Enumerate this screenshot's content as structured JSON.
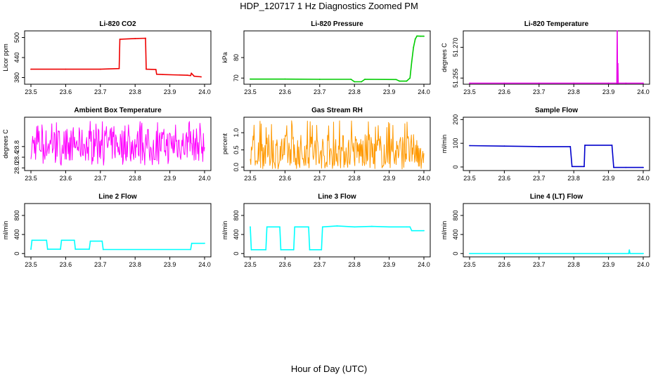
{
  "figure": {
    "title": "HDP_120717  1 Hz Diagnostics Zoomed PM",
    "xlabel": "Hour of Day (UTC)"
  },
  "chart_data": [
    {
      "type": "line",
      "title": "Li-820 CO2",
      "ylabel": "Licor ppm",
      "color": "#ee0000",
      "xlim": [
        23.5,
        24.0
      ],
      "ylim": [
        360,
        520
      ],
      "yticks": [
        380,
        440,
        500
      ],
      "ytick_labels": [
        "380",
        "440",
        "500"
      ],
      "xticks": [
        23.5,
        23.6,
        23.7,
        23.8,
        23.9,
        24.0
      ],
      "x": [
        23.5,
        23.6,
        23.7,
        23.754,
        23.756,
        23.8,
        23.83,
        23.832,
        23.86,
        23.862,
        23.88,
        23.95,
        23.96,
        23.962,
        23.97,
        23.99
      ],
      "y": [
        405,
        405,
        405,
        407,
        495,
        497,
        498,
        405,
        404,
        390,
        389,
        387,
        386,
        393,
        384,
        382
      ]
    },
    {
      "type": "line",
      "title": "Li-820 Pressure",
      "ylabel": "kPa",
      "color": "#00cc00",
      "xlim": [
        23.5,
        24.0
      ],
      "ylim": [
        67,
        93
      ],
      "yticks": [
        70,
        80
      ],
      "ytick_labels": [
        "70",
        "80"
      ],
      "xticks": [
        23.5,
        23.6,
        23.7,
        23.8,
        23.9,
        24.0
      ],
      "x": [
        23.5,
        23.6,
        23.7,
        23.79,
        23.8,
        23.82,
        23.83,
        23.92,
        23.93,
        23.95,
        23.96,
        23.965,
        23.97,
        23.975,
        23.98,
        23.99,
        24.0
      ],
      "y": [
        69.5,
        69.5,
        69.4,
        69.4,
        68.2,
        68.2,
        69.4,
        69.3,
        68.5,
        68.5,
        70,
        78,
        85,
        89,
        90.5,
        90.4,
        90.4
      ]
    },
    {
      "type": "line",
      "title": "Li-820 Temperature",
      "ylabel": "degrees C",
      "color": "#e800e8",
      "xlim": [
        23.5,
        24.0
      ],
      "ylim": [
        51.252,
        51.278
      ],
      "yticks": [
        51.255,
        51.27
      ],
      "ytick_labels": [
        "51.255",
        "51.270"
      ],
      "xticks": [
        23.5,
        23.6,
        23.7,
        23.8,
        23.9,
        24.0
      ],
      "x": [
        23.5,
        23.6,
        23.7,
        23.8,
        23.9,
        23.924,
        23.925,
        23.926,
        23.927,
        23.928,
        23.95,
        24.0
      ],
      "y": [
        51.2525,
        51.2525,
        51.2525,
        51.2525,
        51.2525,
        51.2525,
        51.278,
        51.2525,
        51.262,
        51.2525,
        51.2525,
        51.2525
      ]
    },
    {
      "type": "line",
      "title": "Ambient Box Temperature",
      "ylabel": "degrees C",
      "color": "#ff00ff",
      "xlim": [
        23.5,
        24.0
      ],
      "ylim": [
        27.9,
        29.9
      ],
      "yticks": [
        28.0,
        28.4,
        28.8
      ],
      "ytick_labels": [
        "28.0",
        "28.4",
        "28.8"
      ],
      "xticks": [
        23.5,
        23.6,
        23.7,
        23.8,
        23.9,
        24.0
      ],
      "noise": {
        "base": 28.87,
        "low": 28.1,
        "high": 29.75,
        "points": 300
      },
      "x": [
        23.5,
        24.0
      ],
      "y": [
        28.1,
        29.75
      ]
    },
    {
      "type": "line",
      "title": "Gas Stream RH",
      "ylabel": "percent",
      "color": "#ff9900",
      "xlim": [
        23.5,
        24.0
      ],
      "ylim": [
        -0.1,
        1.45
      ],
      "yticks": [
        0.0,
        0.5,
        1.0
      ],
      "ytick_labels": [
        "0.0",
        "0.5",
        "1.0"
      ],
      "xticks": [
        23.5,
        23.6,
        23.7,
        23.8,
        23.9,
        24.0
      ],
      "noise": {
        "base": 0.45,
        "low": 0.0,
        "high": 1.35,
        "points": 320
      },
      "x": [
        23.5,
        24.0
      ],
      "y": [
        0.0,
        1.35
      ]
    },
    {
      "type": "line",
      "title": "Sample Flow",
      "ylabel": "ml/min",
      "color": "#0000cc",
      "xlim": [
        23.5,
        24.0
      ],
      "ylim": [
        -15,
        210
      ],
      "yticks": [
        0,
        100,
        200
      ],
      "ytick_labels": [
        "0",
        "100",
        "200"
      ],
      "xticks": [
        23.5,
        23.6,
        23.7,
        23.8,
        23.9,
        24.0
      ],
      "x": [
        23.5,
        23.6,
        23.7,
        23.79,
        23.795,
        23.83,
        23.832,
        23.91,
        23.915,
        23.95,
        24.0
      ],
      "y": [
        90,
        88,
        86,
        86,
        2,
        2,
        92,
        92,
        -2,
        -2,
        -2
      ]
    },
    {
      "type": "line",
      "title": "Line 2 Flow",
      "ylabel": "ml/min",
      "color": "#00ffff",
      "xlim": [
        23.5,
        24.0
      ],
      "ylim": [
        -70,
        1050
      ],
      "yticks": [
        0,
        400,
        800
      ],
      "ytick_labels": [
        "0",
        "400",
        "800"
      ],
      "xticks": [
        23.5,
        23.6,
        23.7,
        23.8,
        23.9,
        24.0
      ],
      "x": [
        23.5,
        23.503,
        23.545,
        23.548,
        23.585,
        23.588,
        23.625,
        23.628,
        23.668,
        23.671,
        23.705,
        23.708,
        23.96,
        23.963,
        24.0
      ],
      "y": [
        90,
        280,
        280,
        90,
        90,
        280,
        280,
        90,
        90,
        260,
        260,
        85,
        85,
        215,
        215
      ]
    },
    {
      "type": "line",
      "title": "Line 3 Flow",
      "ylabel": "ml/min",
      "color": "#00ffff",
      "xlim": [
        23.5,
        24.0
      ],
      "ylim": [
        -70,
        1050
      ],
      "yticks": [
        0,
        400,
        800
      ],
      "ytick_labels": [
        "0",
        "400",
        "800"
      ],
      "xticks": [
        23.5,
        23.6,
        23.7,
        23.8,
        23.9,
        24.0
      ],
      "x": [
        23.5,
        23.503,
        23.545,
        23.548,
        23.585,
        23.588,
        23.625,
        23.628,
        23.668,
        23.671,
        23.705,
        23.708,
        23.75,
        23.8,
        23.85,
        23.9,
        23.95,
        23.96,
        23.965,
        24.0
      ],
      "y": [
        560,
        80,
        80,
        560,
        560,
        80,
        80,
        560,
        560,
        80,
        80,
        560,
        580,
        560,
        570,
        560,
        560,
        560,
        480,
        480
      ]
    },
    {
      "type": "line",
      "title": "Line 4 (LT) Flow",
      "ylabel": "ml/min",
      "color": "#00ffff",
      "xlim": [
        23.5,
        24.0
      ],
      "ylim": [
        -70,
        1050
      ],
      "yticks": [
        0,
        400,
        800
      ],
      "ytick_labels": [
        "0",
        "400",
        "800"
      ],
      "xticks": [
        23.5,
        23.6,
        23.7,
        23.8,
        23.9,
        24.0
      ],
      "x": [
        23.5,
        23.6,
        23.7,
        23.8,
        23.9,
        23.958,
        23.96,
        23.962,
        24.0
      ],
      "y": [
        0,
        0,
        0,
        0,
        0,
        0,
        75,
        0,
        0
      ]
    }
  ]
}
